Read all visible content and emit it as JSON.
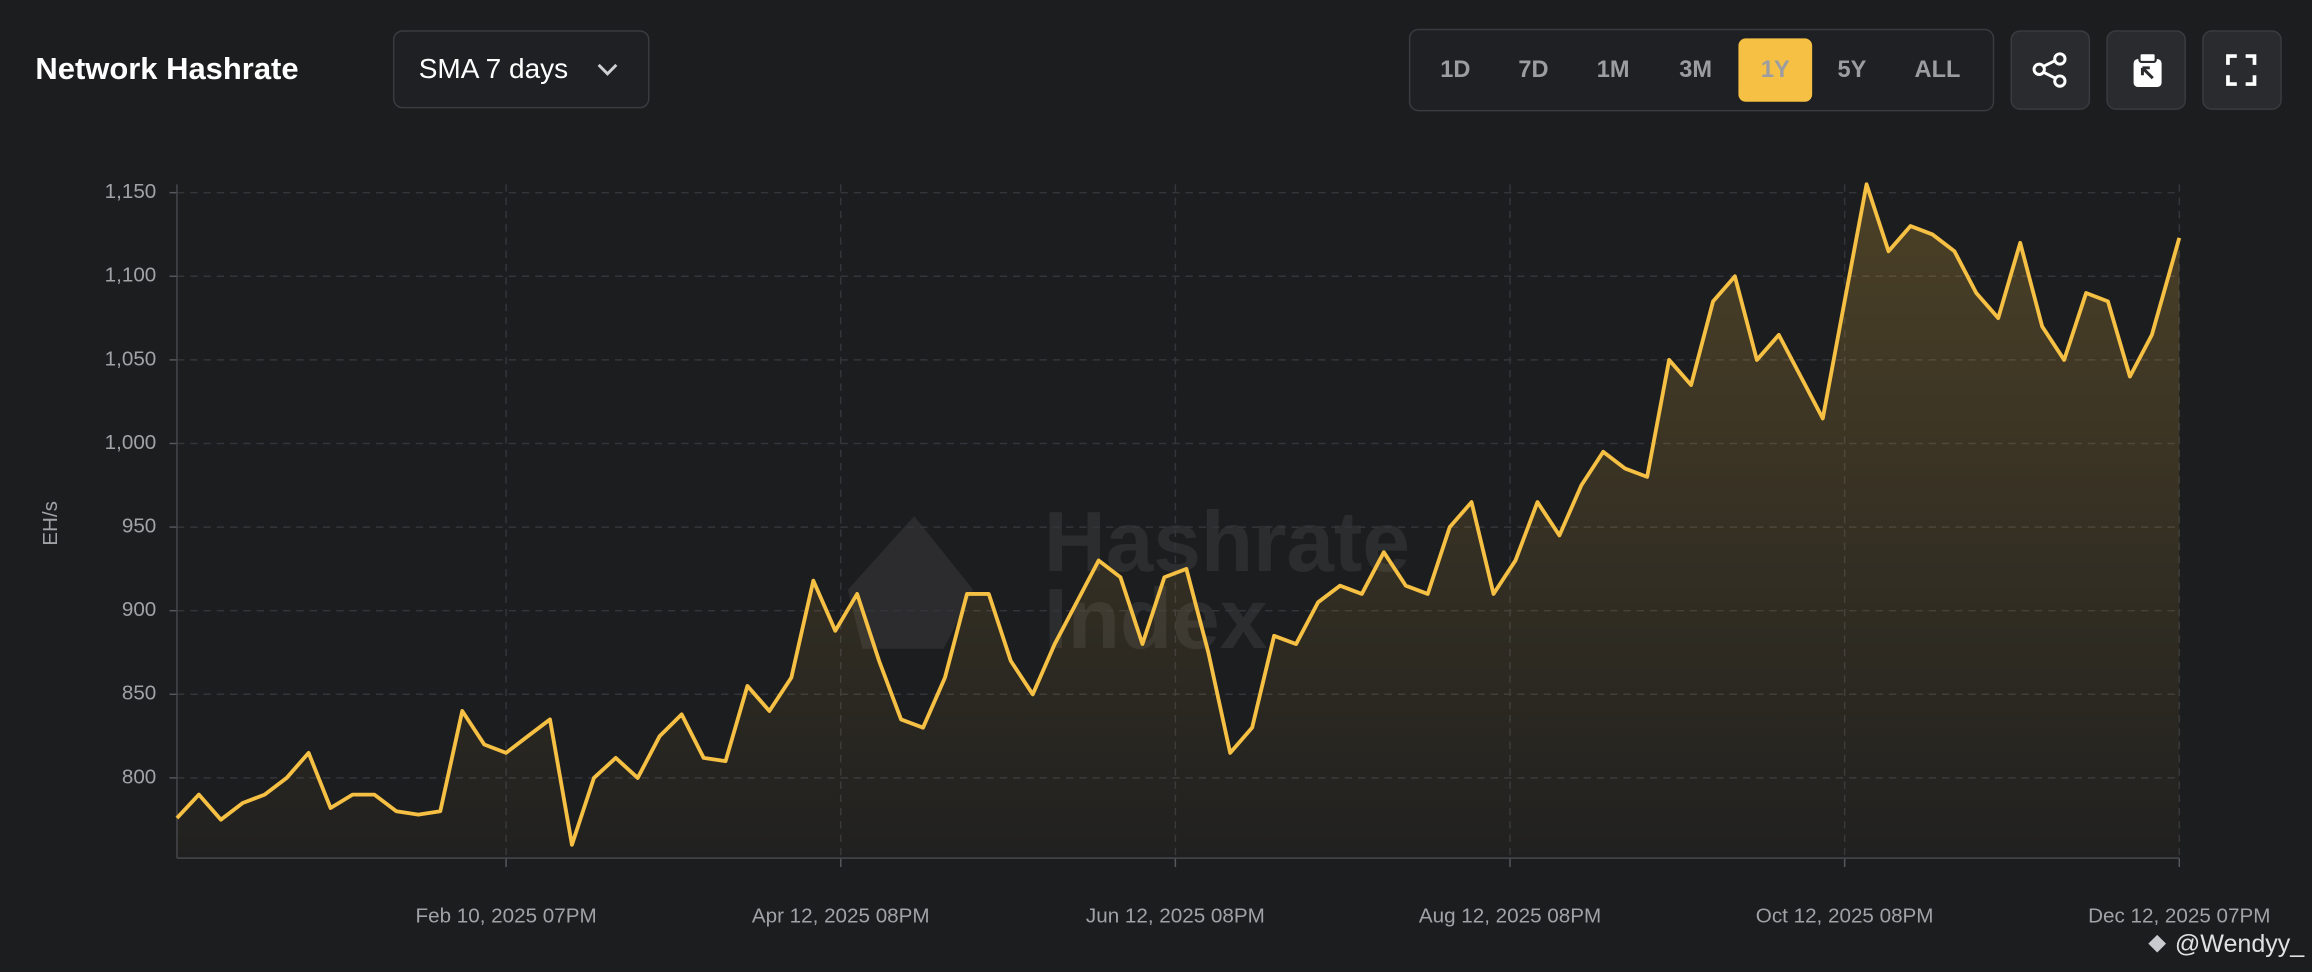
{
  "header": {
    "title": "Network Hashrate",
    "dropdown": "SMA 7 days",
    "ranges": [
      "1D",
      "7D",
      "1M",
      "3M",
      "1Y",
      "5Y",
      "ALL"
    ],
    "active_range": "1Y"
  },
  "watermark": [
    "Hashrate",
    "Index"
  ],
  "credit": "@Wendyy_",
  "chart_data": {
    "type": "line",
    "y_label": "EH/s",
    "color": "#f5c043",
    "grid": true,
    "x": [
      "2024-12-12",
      "2024-12-16",
      "2024-12-20",
      "2024-12-24",
      "2024-12-28",
      "2025-01-01",
      "2025-01-05",
      "2025-01-09",
      "2025-01-13",
      "2025-01-17",
      "2025-01-21",
      "2025-01-25",
      "2025-01-29",
      "2025-02-02",
      "2025-02-06",
      "2025-02-10",
      "2025-02-14",
      "2025-02-18",
      "2025-02-22",
      "2025-02-26",
      "2025-03-02",
      "2025-03-06",
      "2025-03-10",
      "2025-03-14",
      "2025-03-18",
      "2025-03-22",
      "2025-03-26",
      "2025-03-30",
      "2025-04-03",
      "2025-04-07",
      "2025-04-11",
      "2025-04-15",
      "2025-04-19",
      "2025-04-23",
      "2025-04-27",
      "2025-05-01",
      "2025-05-05",
      "2025-05-09",
      "2025-05-13",
      "2025-05-17",
      "2025-05-21",
      "2025-05-25",
      "2025-05-29",
      "2025-06-02",
      "2025-06-06",
      "2025-06-10",
      "2025-06-14",
      "2025-06-18",
      "2025-06-22",
      "2025-06-26",
      "2025-06-30",
      "2025-07-04",
      "2025-07-08",
      "2025-07-12",
      "2025-07-16",
      "2025-07-20",
      "2025-07-24",
      "2025-07-28",
      "2025-08-01",
      "2025-08-05",
      "2025-08-09",
      "2025-08-13",
      "2025-08-17",
      "2025-08-21",
      "2025-08-25",
      "2025-08-29",
      "2025-09-02",
      "2025-09-06",
      "2025-09-10",
      "2025-09-14",
      "2025-09-18",
      "2025-09-22",
      "2025-09-26",
      "2025-09-30",
      "2025-10-04",
      "2025-10-08",
      "2025-10-12",
      "2025-10-16",
      "2025-10-20",
      "2025-10-24",
      "2025-10-28",
      "2025-11-01",
      "2025-11-05",
      "2025-11-09",
      "2025-11-13",
      "2025-11-17",
      "2025-11-21",
      "2025-11-25",
      "2025-11-29",
      "2025-12-03",
      "2025-12-07",
      "2025-12-12"
    ],
    "values": [
      776,
      790,
      775,
      785,
      790,
      800,
      815,
      782,
      790,
      790,
      780,
      778,
      780,
      840,
      820,
      815,
      825,
      835,
      760,
      800,
      812,
      800,
      825,
      838,
      812,
      810,
      855,
      840,
      860,
      918,
      888,
      910,
      870,
      835,
      830,
      860,
      910,
      910,
      870,
      850,
      880,
      905,
      930,
      920,
      880,
      920,
      925,
      875,
      815,
      830,
      885,
      880,
      905,
      915,
      910,
      935,
      915,
      910,
      950,
      965,
      910,
      930,
      965,
      945,
      975,
      995,
      985,
      980,
      1050,
      1035,
      1085,
      1100,
      1050,
      1065,
      1040,
      1015,
      1085,
      1155,
      1115,
      1130,
      1125,
      1115,
      1090,
      1075,
      1120,
      1070,
      1050,
      1090,
      1085,
      1040,
      1065,
      1123
    ],
    "xlim": [
      "2024-12-12",
      "2025-12-12"
    ],
    "xticks": [
      {
        "value": "2025-02-10",
        "label": "Feb 10, 2025 07PM"
      },
      {
        "value": "2025-04-12",
        "label": "Apr 12, 2025 08PM"
      },
      {
        "value": "2025-06-12",
        "label": "Jun 12, 2025 08PM"
      },
      {
        "value": "2025-08-12",
        "label": "Aug 12, 2025 08PM"
      },
      {
        "value": "2025-10-12",
        "label": "Oct 12, 2025 08PM"
      },
      {
        "value": "2025-12-12",
        "label": "Dec 12, 2025 07PM"
      }
    ],
    "ylim": [
      752,
      1155
    ],
    "yticks": [
      800,
      850,
      900,
      950,
      {
        "value": 1000,
        "label": "1,000"
      },
      {
        "value": 1050,
        "label": "1,050"
      },
      {
        "value": 1100,
        "label": "1,100"
      },
      {
        "value": 1150,
        "label": "1,150"
      }
    ]
  }
}
